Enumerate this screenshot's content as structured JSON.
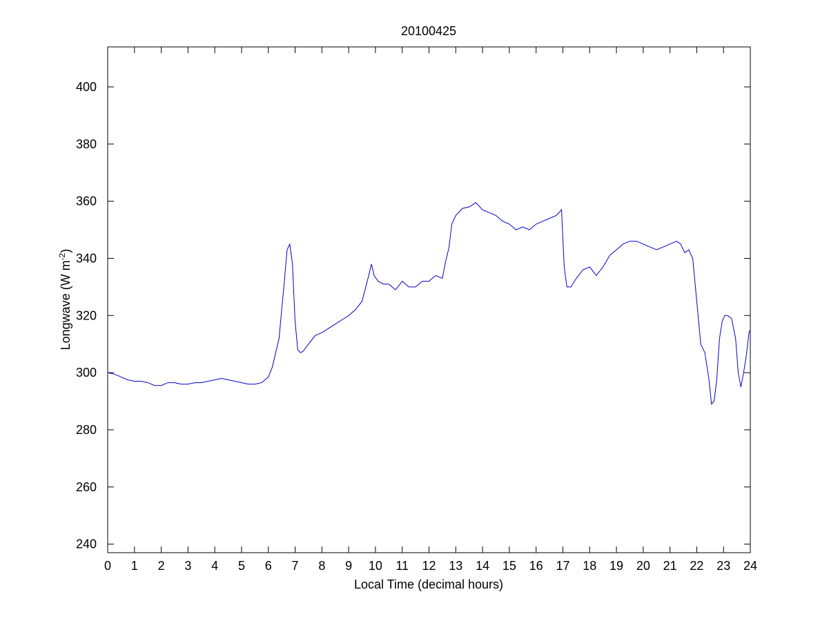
{
  "chart_data": {
    "type": "line",
    "title": "20100425",
    "xlabel": "Local Time (decimal hours)",
    "ylabel": {
      "main": "Longwave (W m",
      "sup": "-2",
      "close": ")"
    },
    "xlim": [
      0,
      24
    ],
    "ylim": [
      237,
      414
    ],
    "xticks": [
      "0",
      "1",
      "2",
      "3",
      "4",
      "5",
      "6",
      "7",
      "8",
      "9",
      "10",
      "11",
      "12",
      "13",
      "14",
      "15",
      "16",
      "17",
      "18",
      "19",
      "20",
      "21",
      "22",
      "23",
      "24"
    ],
    "yticks": [
      "240",
      "260",
      "280",
      "300",
      "320",
      "340",
      "360",
      "380",
      "400"
    ],
    "grid": false,
    "colors": {
      "line": "#0000cc",
      "axes": "#000000",
      "background": "#ffffff"
    },
    "series": [
      {
        "x": [
          0,
          0.25,
          0.5,
          0.75,
          1.0,
          1.25,
          1.5,
          1.75,
          2.0,
          2.25,
          2.5,
          2.75,
          3.0,
          3.25,
          3.5,
          3.75,
          4.0,
          4.25,
          4.5,
          4.75,
          5.0,
          5.25,
          5.5,
          5.75,
          6.0,
          6.15,
          6.3,
          6.4,
          6.5,
          6.6,
          6.7,
          6.8,
          6.9,
          7.0,
          7.1,
          7.2,
          7.3,
          7.5,
          7.75,
          8.0,
          8.25,
          8.5,
          8.75,
          9.0,
          9.25,
          9.5,
          9.75,
          9.85,
          9.95,
          10.1,
          10.3,
          10.5,
          10.75,
          11.0,
          11.25,
          11.5,
          11.75,
          12.0,
          12.25,
          12.5,
          12.6,
          12.75,
          12.85,
          13.0,
          13.25,
          13.5,
          13.75,
          14.0,
          14.25,
          14.5,
          14.75,
          15.0,
          15.25,
          15.5,
          15.75,
          16.0,
          16.25,
          16.5,
          16.75,
          16.95,
          17.05,
          17.15,
          17.3,
          17.5,
          17.75,
          18.0,
          18.25,
          18.5,
          18.75,
          19.0,
          19.25,
          19.5,
          19.75,
          20.0,
          20.25,
          20.5,
          20.75,
          21.0,
          21.25,
          21.4,
          21.55,
          21.7,
          21.85,
          22.0,
          22.15,
          22.3,
          22.45,
          22.55,
          22.65,
          22.75,
          22.85,
          22.95,
          23.05,
          23.15,
          23.3,
          23.45,
          23.55,
          23.65,
          23.75,
          23.85,
          23.95,
          24.0
        ],
        "values": [
          300,
          299.5,
          298.5,
          297.5,
          297,
          297,
          296.5,
          295.5,
          295.5,
          296.5,
          296.5,
          296,
          296,
          296.5,
          296.5,
          297,
          297.5,
          298,
          297.5,
          297,
          296.5,
          296,
          296,
          296.5,
          298.5,
          302,
          308,
          312,
          322,
          332,
          343,
          345,
          338,
          318,
          308,
          307,
          307.5,
          310,
          313,
          314,
          315.5,
          317,
          318.5,
          320,
          322,
          325,
          334,
          338,
          334,
          332,
          331,
          331,
          329,
          332,
          330,
          330,
          332,
          332,
          334,
          333,
          338,
          344,
          352,
          355,
          357.5,
          358,
          359.5,
          357,
          356,
          355,
          353,
          352,
          350,
          351,
          350,
          352,
          353,
          354,
          355,
          357,
          337,
          330,
          330,
          333,
          336,
          337,
          334,
          337,
          341,
          343,
          345,
          346,
          346,
          345,
          344,
          343,
          344,
          345,
          346,
          345,
          342,
          343,
          340,
          325,
          310,
          307,
          298,
          289,
          290,
          298,
          312,
          318,
          320,
          320,
          319,
          312,
          300,
          295,
          300,
          306,
          314,
          315
        ]
      }
    ]
  }
}
